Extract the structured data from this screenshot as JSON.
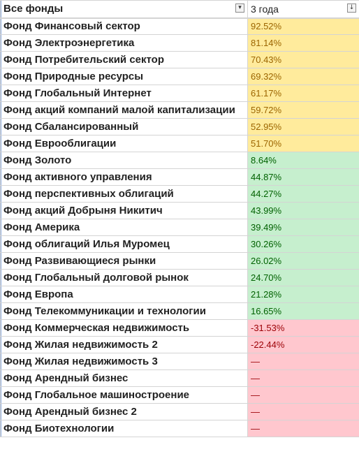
{
  "header": {
    "col_a": "Все фонды",
    "col_b": "3 года",
    "filter_a_icon": "▾",
    "filter_b_icon": "↓"
  },
  "rows": [
    {
      "name": "Фонд Финансовый сектор",
      "value": "92.52%",
      "band": "yellow"
    },
    {
      "name": "Фонд Электроэнергетика",
      "value": "81.14%",
      "band": "yellow"
    },
    {
      "name": "Фонд Потребительский сектор",
      "value": "70.43%",
      "band": "yellow"
    },
    {
      "name": "Фонд Природные ресурсы",
      "value": "69.32%",
      "band": "yellow"
    },
    {
      "name": "Фонд Глобальный Интернет",
      "value": "61.17%",
      "band": "yellow"
    },
    {
      "name": "Фонд акций компаний малой капитализации",
      "value": "59.72%",
      "band": "yellow"
    },
    {
      "name": "Фонд Сбалансированный",
      "value": "52.95%",
      "band": "yellow"
    },
    {
      "name": "Фонд Еврооблигации",
      "value": "51.70%",
      "band": "yellow"
    },
    {
      "name": "Фонд Золото",
      "value": "8.64%",
      "band": "green"
    },
    {
      "name": "Фонд активного управления",
      "value": "44.87%",
      "band": "green"
    },
    {
      "name": "Фонд перспективных облигаций",
      "value": "44.27%",
      "band": "green"
    },
    {
      "name": "Фонд акций Добрыня Никитич",
      "value": "43.99%",
      "band": "green"
    },
    {
      "name": "Фонд Америка",
      "value": "39.49%",
      "band": "green"
    },
    {
      "name": "Фонд облигаций Илья Муромец",
      "value": "30.26%",
      "band": "green"
    },
    {
      "name": "Фонд Развивающиеся рынки",
      "value": "26.02%",
      "band": "green"
    },
    {
      "name": "Фонд Глобальный долговой рынок",
      "value": "24.70%",
      "band": "green"
    },
    {
      "name": "Фонд Европа",
      "value": "21.28%",
      "band": "green"
    },
    {
      "name": "Фонд Телекоммуникации и технологии",
      "value": "16.65%",
      "band": "green"
    },
    {
      "name": "Фонд Коммерческая недвижимость",
      "value": "-31.53%",
      "band": "red"
    },
    {
      "name": "Фонд Жилая недвижимость 2",
      "value": "-22.44%",
      "band": "red"
    },
    {
      "name": "Фонд Жилая недвижимость 3",
      "value": "—",
      "band": "red"
    },
    {
      "name": "Фонд Арендный бизнес",
      "value": "—",
      "band": "red"
    },
    {
      "name": "Фонд Глобальное машиностроение",
      "value": "—",
      "band": "red"
    },
    {
      "name": "Фонд Арендный бизнес 2",
      "value": "—",
      "band": "red"
    },
    {
      "name": "Фонд Биотехнологии",
      "value": "—",
      "band": "red"
    }
  ],
  "colors": {
    "yellow": "#ffeb9c",
    "green": "#c6efce",
    "red": "#ffc7ce",
    "grid": "#d4d4d4"
  }
}
